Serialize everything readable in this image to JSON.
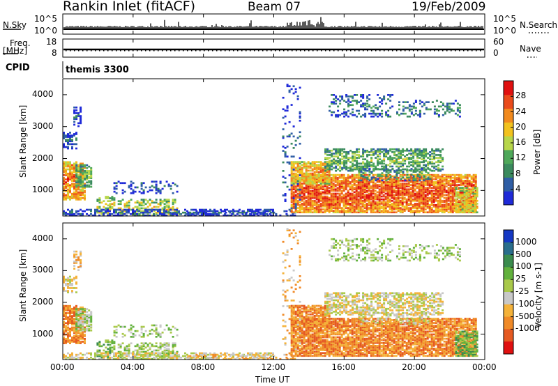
{
  "header": {
    "title": "Rankin Inlet (fitACF)",
    "beam": "Beam 07",
    "date": "19/Feb/2009"
  },
  "panels": {
    "nsky": {
      "label": "N.Sky",
      "tick_top": "10^5",
      "tick_bottom": "10^0"
    },
    "nsearch": {
      "label": "N.Search",
      "tick_top": "10^5",
      "tick_bottom": "10^0"
    },
    "freq": {
      "label": "Freq.",
      "unit": "[MHz]",
      "tick_top": "18",
      "tick_bottom": "8"
    },
    "nave": {
      "label": "Nave",
      "tick_top": "60",
      "tick_bottom": "0"
    },
    "cpid": {
      "label": "CPID",
      "value": "themis 3300"
    }
  },
  "colors": {
    "power": [
      "#1f2ad8",
      "#2f5ea5",
      "#3b8a5e",
      "#4fa85a",
      "#b7d64a",
      "#f2c21e",
      "#f28a1e",
      "#ea4b1c",
      "#e01010"
    ],
    "velocity": [
      "#1538c4",
      "#2a6e8c",
      "#3b8c4e",
      "#62b13d",
      "#a9c94a",
      "#c8c8c8",
      "#f4b23a",
      "#f08a28",
      "#e55a22",
      "#e01010"
    ]
  },
  "chart_data": [
    {
      "type": "heatmap",
      "name": "power",
      "ylabel": "Slant Range [km]",
      "yticks": [
        "1000",
        "2000",
        "3000",
        "4000"
      ],
      "ylim": [
        200,
        4500
      ],
      "colorbar_label": "Power [dB]",
      "colorbar_ticks": [
        "4",
        "8",
        "12",
        "16",
        "20",
        "24",
        "28"
      ],
      "scale": [
        0,
        32
      ]
    },
    {
      "type": "heatmap",
      "name": "velocity",
      "ylabel": "Slant Range [km]",
      "yticks": [
        "1000",
        "2000",
        "3000",
        "4000"
      ],
      "ylim": [
        200,
        4500
      ],
      "colorbar_label": "Velocity [m s-1]",
      "colorbar_ticks": [
        "1000",
        "500",
        "100",
        "25",
        "-25",
        "-100",
        "-500",
        "-1000"
      ]
    }
  ],
  "xaxis": {
    "label": "Time UT",
    "ticks": [
      "00:00",
      "04:00",
      "08:00",
      "12:00",
      "16:00",
      "20:00",
      "00:00"
    ]
  }
}
